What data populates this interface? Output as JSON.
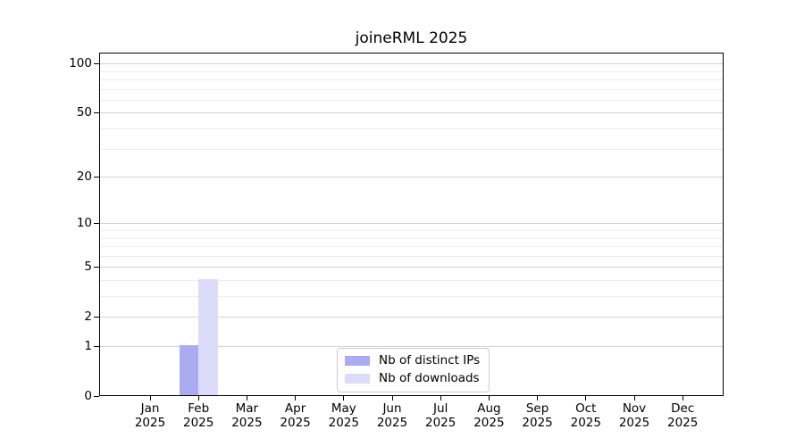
{
  "chart_data": {
    "type": "bar",
    "title": "joineRML 2025",
    "categories": [
      "Jan",
      "Feb",
      "Mar",
      "Apr",
      "May",
      "Jun",
      "Jul",
      "Aug",
      "Sep",
      "Oct",
      "Nov",
      "Dec"
    ],
    "year_label": "2025",
    "series": [
      {
        "name": "Nb of distinct IPs",
        "color": "#ababf2",
        "values": [
          0,
          1,
          0,
          0,
          0,
          0,
          0,
          0,
          0,
          0,
          0,
          0
        ]
      },
      {
        "name": "Nb of downloads",
        "color": "#dcdcfa",
        "values": [
          0,
          4,
          0,
          0,
          0,
          0,
          0,
          0,
          0,
          0,
          0,
          0
        ]
      }
    ],
    "y_scale": "log1p",
    "y_ticks": [
      0,
      1,
      2,
      5,
      10,
      20,
      50,
      100
    ],
    "y_minor_grid": [
      3,
      4,
      6,
      7,
      8,
      9,
      30,
      40,
      60,
      70,
      80,
      90
    ],
    "ylim": [
      0,
      116
    ],
    "grid": "horizontal",
    "legend_position": "lower center inside plot"
  },
  "colors": {
    "major_grid": "#d2d2d2",
    "minor_grid": "#ececec",
    "axis": "#000000",
    "text": "#000000",
    "legend_border": "#cccccc",
    "background": "#ffffff"
  }
}
